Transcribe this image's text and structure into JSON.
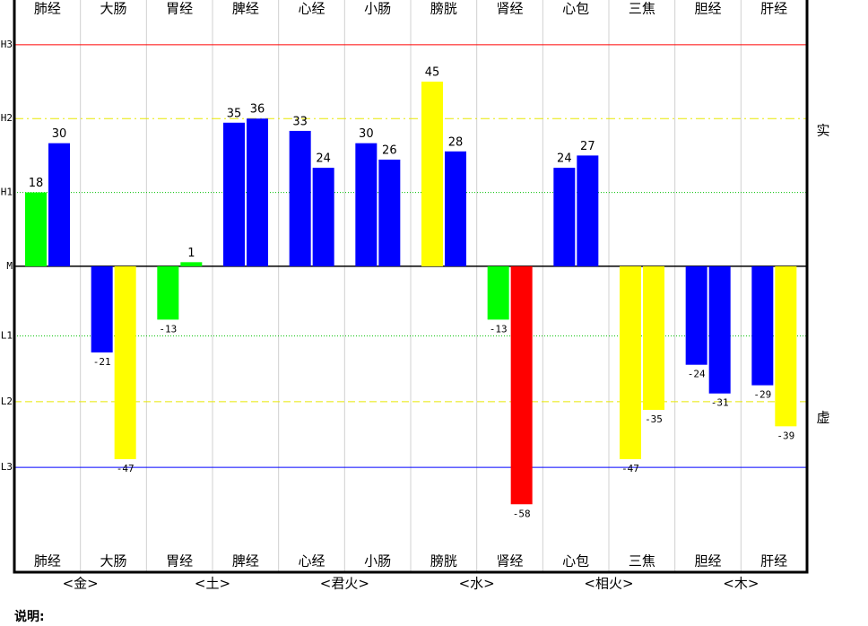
{
  "chart_data": {
    "type": "bar",
    "categories": [
      "肺经",
      "大肠",
      "胃经",
      "脾经",
      "心经",
      "小肠",
      "膀胱",
      "肾经",
      "心包",
      "三焦",
      "胆经",
      "肝经"
    ],
    "groups": [
      "<金>",
      "<土>",
      "<君火>",
      "<水>",
      "<相火>",
      "<木>"
    ],
    "series": [
      {
        "values": [
          18,
          -21,
          -13,
          35,
          33,
          30,
          45,
          -13,
          24,
          -47,
          -24,
          -29
        ],
        "colors": [
          "#00ff00",
          "#0000ff",
          "#00ff00",
          "#0000ff",
          "#0000ff",
          "#0000ff",
          "#ffff00",
          "#00ff00",
          "#0000ff",
          "#ffff00",
          "#0000ff",
          "#0000ff"
        ]
      },
      {
        "values": [
          30,
          -47,
          1,
          36,
          24,
          26,
          28,
          -58,
          27,
          -35,
          -31,
          -39
        ],
        "colors": [
          "#0000ff",
          "#ffff00",
          "#00ff00",
          "#0000ff",
          "#0000ff",
          "#0000ff",
          "#0000ff",
          "#ff0000",
          "#0000ff",
          "#ffff00",
          "#0000ff",
          "#ffff00"
        ]
      }
    ],
    "ylim": [
      -68,
      59
    ],
    "yticks": [
      {
        "value": 54,
        "label": "H3",
        "color": "#ff0000",
        "dash": "none"
      },
      {
        "value": 36,
        "label": "H2",
        "color": "#e8e800",
        "dash": "10 4 2 4"
      },
      {
        "value": 18,
        "label": "H1",
        "color": "#00c000",
        "dash": "1 2"
      },
      {
        "value": 0,
        "label": "M",
        "color": "#000000",
        "dash": "none"
      },
      {
        "value": -17,
        "label": "L1",
        "color": "#00c000",
        "dash": "1 2"
      },
      {
        "value": -33,
        "label": "L2",
        "color": "#e8e800",
        "dash": "8 4"
      },
      {
        "value": -49,
        "label": "L3",
        "color": "#0000ff",
        "dash": "none"
      }
    ],
    "upper_label": "实",
    "lower_label": "虚",
    "note": "说明:"
  }
}
